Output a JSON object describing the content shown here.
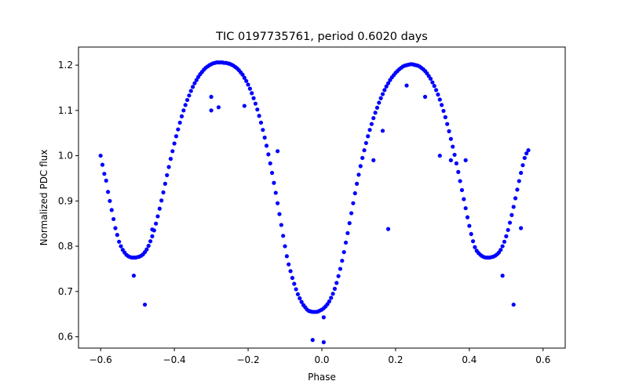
{
  "chart_data": {
    "type": "scatter",
    "title": "TIC 0197735761, period 0.6020 days",
    "xlabel": "Phase",
    "ylabel": "Normalized PDC flux",
    "xlim": [
      -0.66,
      0.66
    ],
    "ylim": [
      0.575,
      1.24
    ],
    "xticks": [
      -0.6,
      -0.4,
      -0.2,
      0.0,
      0.2,
      0.4,
      0.6
    ],
    "xtick_labels": [
      "−0.6",
      "−0.4",
      "−0.2",
      "0.0",
      "0.2",
      "0.4",
      "0.6"
    ],
    "yticks": [
      0.6,
      0.7,
      0.8,
      0.9,
      1.0,
      1.1,
      1.2
    ],
    "ytick_labels": [
      "0.6",
      "0.7",
      "0.8",
      "0.9",
      "1.0",
      "1.1",
      "1.2"
    ],
    "grid": false,
    "marker_color": "#0000ff",
    "series": [
      {
        "points": [
          [
            -0.6,
            1.0
          ],
          [
            -0.595,
            0.98
          ],
          [
            -0.59,
            0.96
          ],
          [
            -0.585,
            0.945
          ],
          [
            -0.58,
            0.92
          ],
          [
            -0.575,
            0.9
          ],
          [
            -0.57,
            0.88
          ],
          [
            -0.565,
            0.86
          ],
          [
            -0.56,
            0.84
          ],
          [
            -0.555,
            0.825
          ],
          [
            -0.55,
            0.81
          ],
          [
            -0.545,
            0.8
          ],
          [
            -0.54,
            0.792
          ],
          [
            -0.535,
            0.786
          ],
          [
            -0.53,
            0.781
          ],
          [
            -0.525,
            0.778
          ],
          [
            -0.52,
            0.776
          ],
          [
            -0.515,
            0.775
          ],
          [
            -0.51,
            0.775
          ],
          [
            -0.505,
            0.775
          ],
          [
            -0.5,
            0.776
          ],
          [
            -0.495,
            0.777
          ],
          [
            -0.49,
            0.779
          ],
          [
            -0.485,
            0.782
          ],
          [
            -0.48,
            0.787
          ],
          [
            -0.475,
            0.793
          ],
          [
            -0.47,
            0.801
          ],
          [
            -0.465,
            0.811
          ],
          [
            -0.46,
            0.822
          ],
          [
            -0.455,
            0.835
          ],
          [
            -0.45,
            0.85
          ],
          [
            -0.445,
            0.866
          ],
          [
            -0.44,
            0.883
          ],
          [
            -0.435,
            0.901
          ],
          [
            -0.43,
            0.919
          ],
          [
            -0.425,
            0.938
          ],
          [
            -0.42,
            0.957
          ],
          [
            -0.415,
            0.975
          ],
          [
            -0.41,
            0.993
          ],
          [
            -0.405,
            1.01
          ],
          [
            -0.4,
            1.027
          ],
          [
            -0.395,
            1.043
          ],
          [
            -0.39,
            1.058
          ],
          [
            -0.385,
            1.073
          ],
          [
            -0.38,
            1.087
          ],
          [
            -0.375,
            1.1
          ],
          [
            -0.37,
            1.112
          ],
          [
            -0.365,
            1.123
          ],
          [
            -0.36,
            1.133
          ],
          [
            -0.355,
            1.143
          ],
          [
            -0.35,
            1.152
          ],
          [
            -0.345,
            1.16
          ],
          [
            -0.34,
            1.167
          ],
          [
            -0.335,
            1.174
          ],
          [
            -0.33,
            1.18
          ],
          [
            -0.325,
            1.185
          ],
          [
            -0.32,
            1.19
          ],
          [
            -0.315,
            1.194
          ],
          [
            -0.31,
            1.197
          ],
          [
            -0.305,
            1.2
          ],
          [
            -0.3,
            1.202
          ],
          [
            -0.295,
            1.204
          ],
          [
            -0.29,
            1.205
          ],
          [
            -0.285,
            1.206
          ],
          [
            -0.28,
            1.206
          ],
          [
            -0.275,
            1.206
          ],
          [
            -0.27,
            1.206
          ],
          [
            -0.265,
            1.205
          ],
          [
            -0.26,
            1.205
          ],
          [
            -0.255,
            1.204
          ],
          [
            -0.25,
            1.203
          ],
          [
            -0.245,
            1.201
          ],
          [
            -0.24,
            1.199
          ],
          [
            -0.235,
            1.196
          ],
          [
            -0.23,
            1.193
          ],
          [
            -0.225,
            1.189
          ],
          [
            -0.22,
            1.184
          ],
          [
            -0.215,
            1.179
          ],
          [
            -0.21,
            1.172
          ],
          [
            -0.205,
            1.165
          ],
          [
            -0.2,
            1.157
          ],
          [
            -0.195,
            1.148
          ],
          [
            -0.19,
            1.138
          ],
          [
            -0.185,
            1.127
          ],
          [
            -0.18,
            1.115
          ],
          [
            -0.175,
            1.102
          ],
          [
            -0.17,
            1.088
          ],
          [
            -0.165,
            1.073
          ],
          [
            -0.16,
            1.057
          ],
          [
            -0.155,
            1.04
          ],
          [
            -0.15,
            1.022
          ],
          [
            -0.145,
            1.003
          ],
          [
            -0.14,
            0.983
          ],
          [
            -0.135,
            0.962
          ],
          [
            -0.13,
            0.94
          ],
          [
            -0.125,
            0.918
          ],
          [
            -0.12,
            0.895
          ],
          [
            -0.115,
            0.871
          ],
          [
            -0.11,
            0.847
          ],
          [
            -0.105,
            0.823
          ],
          [
            -0.1,
            0.8
          ],
          [
            -0.095,
            0.778
          ],
          [
            -0.09,
            0.76
          ],
          [
            -0.085,
            0.745
          ],
          [
            -0.08,
            0.73
          ],
          [
            -0.075,
            0.717
          ],
          [
            -0.07,
            0.705
          ],
          [
            -0.065,
            0.694
          ],
          [
            -0.06,
            0.685
          ],
          [
            -0.055,
            0.677
          ],
          [
            -0.05,
            0.67
          ],
          [
            -0.045,
            0.665
          ],
          [
            -0.04,
            0.66
          ],
          [
            -0.035,
            0.657
          ],
          [
            -0.03,
            0.656
          ],
          [
            -0.025,
            0.655
          ],
          [
            -0.02,
            0.655
          ],
          [
            -0.015,
            0.655
          ],
          [
            -0.01,
            0.656
          ],
          [
            -0.005,
            0.658
          ],
          [
            0.0,
            0.66
          ],
          [
            0.005,
            0.663
          ],
          [
            0.01,
            0.667
          ],
          [
            0.015,
            0.672
          ],
          [
            0.02,
            0.678
          ],
          [
            0.025,
            0.686
          ],
          [
            0.03,
            0.695
          ],
          [
            0.035,
            0.706
          ],
          [
            0.04,
            0.719
          ],
          [
            0.045,
            0.734
          ],
          [
            0.05,
            0.75
          ],
          [
            0.055,
            0.768
          ],
          [
            0.06,
            0.787
          ],
          [
            0.065,
            0.808
          ],
          [
            0.07,
            0.829
          ],
          [
            0.075,
            0.851
          ],
          [
            0.08,
            0.873
          ],
          [
            0.085,
            0.895
          ],
          [
            0.09,
            0.917
          ],
          [
            0.095,
            0.938
          ],
          [
            0.1,
            0.958
          ],
          [
            0.105,
            0.977
          ],
          [
            0.11,
            0.995
          ],
          [
            0.115,
            1.012
          ],
          [
            0.12,
            1.028
          ],
          [
            0.125,
            1.043
          ],
          [
            0.13,
            1.057
          ],
          [
            0.135,
            1.07
          ],
          [
            0.14,
            1.083
          ],
          [
            0.145,
            1.095
          ],
          [
            0.15,
            1.106
          ],
          [
            0.155,
            1.117
          ],
          [
            0.16,
            1.127
          ],
          [
            0.165,
            1.136
          ],
          [
            0.17,
            1.145
          ],
          [
            0.175,
            1.153
          ],
          [
            0.18,
            1.16
          ],
          [
            0.185,
            1.167
          ],
          [
            0.19,
            1.173
          ],
          [
            0.195,
            1.178
          ],
          [
            0.2,
            1.183
          ],
          [
            0.205,
            1.187
          ],
          [
            0.21,
            1.191
          ],
          [
            0.215,
            1.194
          ],
          [
            0.22,
            1.197
          ],
          [
            0.225,
            1.199
          ],
          [
            0.23,
            1.2
          ],
          [
            0.235,
            1.201
          ],
          [
            0.24,
            1.202
          ],
          [
            0.245,
            1.202
          ],
          [
            0.25,
            1.201
          ],
          [
            0.255,
            1.2
          ],
          [
            0.26,
            1.199
          ],
          [
            0.265,
            1.197
          ],
          [
            0.27,
            1.194
          ],
          [
            0.275,
            1.191
          ],
          [
            0.28,
            1.187
          ],
          [
            0.285,
            1.182
          ],
          [
            0.29,
            1.176
          ],
          [
            0.295,
            1.17
          ],
          [
            0.3,
            1.162
          ],
          [
            0.305,
            1.154
          ],
          [
            0.31,
            1.145
          ],
          [
            0.315,
            1.135
          ],
          [
            0.32,
            1.124
          ],
          [
            0.325,
            1.112
          ],
          [
            0.33,
            1.099
          ],
          [
            0.335,
            1.085
          ],
          [
            0.34,
            1.07
          ],
          [
            0.345,
            1.054
          ],
          [
            0.35,
            1.037
          ],
          [
            0.355,
            1.02
          ],
          [
            0.36,
            1.002
          ],
          [
            0.365,
            0.983
          ],
          [
            0.37,
            0.964
          ],
          [
            0.375,
            0.944
          ],
          [
            0.38,
            0.924
          ],
          [
            0.385,
            0.904
          ],
          [
            0.39,
            0.884
          ],
          [
            0.395,
            0.864
          ],
          [
            0.4,
            0.845
          ],
          [
            0.405,
            0.827
          ],
          [
            0.41,
            0.811
          ],
          [
            0.415,
            0.798
          ],
          [
            0.42,
            0.79
          ],
          [
            0.425,
            0.785
          ],
          [
            0.43,
            0.781
          ],
          [
            0.435,
            0.778
          ],
          [
            0.44,
            0.776
          ],
          [
            0.445,
            0.775
          ],
          [
            0.45,
            0.775
          ],
          [
            0.455,
            0.775
          ],
          [
            0.46,
            0.776
          ],
          [
            0.465,
            0.777
          ],
          [
            0.47,
            0.779
          ],
          [
            0.475,
            0.782
          ],
          [
            0.48,
            0.786
          ],
          [
            0.485,
            0.792
          ],
          [
            0.49,
            0.8
          ],
          [
            0.495,
            0.81
          ],
          [
            0.5,
            0.822
          ],
          [
            0.505,
            0.836
          ],
          [
            0.51,
            0.852
          ],
          [
            0.515,
            0.869
          ],
          [
            0.52,
            0.887
          ],
          [
            0.525,
            0.906
          ],
          [
            0.53,
            0.925
          ],
          [
            0.535,
            0.944
          ],
          [
            0.54,
            0.962
          ],
          [
            0.545,
            0.979
          ],
          [
            0.55,
            0.995
          ],
          [
            0.555,
            1.005
          ],
          [
            0.56,
            1.012
          ],
          [
            -0.51,
            0.735
          ],
          [
            -0.48,
            0.671
          ],
          [
            -0.46,
            0.837
          ],
          [
            -0.3,
            1.1
          ],
          [
            -0.28,
            1.107
          ],
          [
            -0.21,
            1.11
          ],
          [
            -0.3,
            1.13
          ],
          [
            -0.025,
            0.593
          ],
          [
            0.005,
            0.588
          ],
          [
            0.005,
            0.643
          ],
          [
            0.14,
            0.99
          ],
          [
            0.165,
            1.055
          ],
          [
            0.18,
            0.838
          ],
          [
            0.23,
            1.155
          ],
          [
            0.28,
            1.13
          ],
          [
            0.32,
            1.0
          ],
          [
            0.35,
            0.99
          ],
          [
            0.39,
            0.99
          ],
          [
            0.49,
            0.735
          ],
          [
            0.52,
            0.671
          ],
          [
            0.54,
            0.84
          ],
          [
            -0.12,
            1.01
          ]
        ]
      }
    ]
  }
}
